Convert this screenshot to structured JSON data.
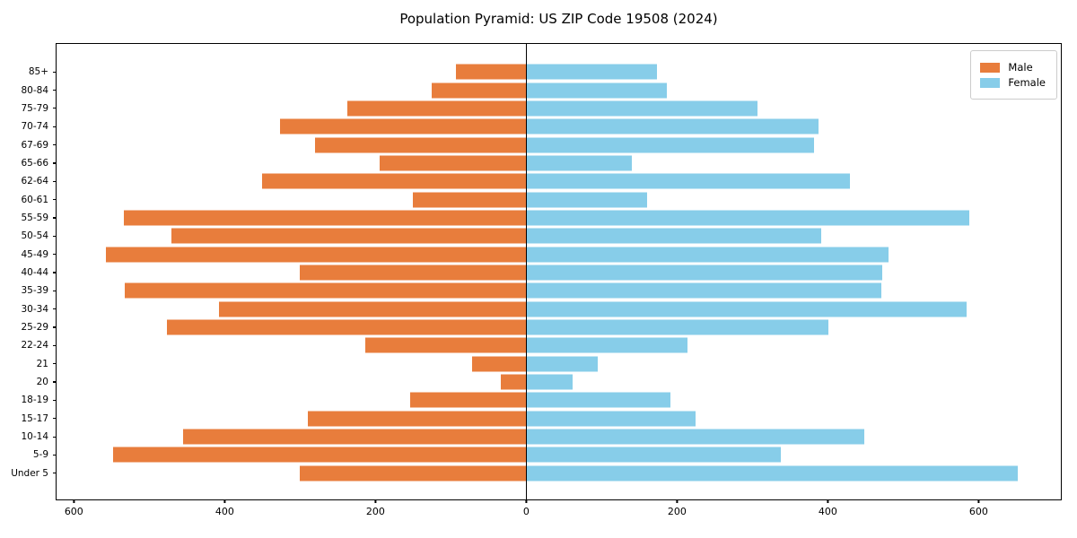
{
  "title": "Population Pyramid: US ZIP Code 19508 (2024)",
  "colors": {
    "male": "#e87d3c",
    "female": "#87cde9",
    "axis": "#000000",
    "zero_line": "#000000",
    "legend_border": "#cccccc"
  },
  "legend": {
    "position": "upper right",
    "entries": [
      {
        "label": "Male",
        "color": "#e87d3c",
        "swatch": "male-swatch"
      },
      {
        "label": "Female",
        "color": "#87cde9",
        "swatch": "female-swatch"
      }
    ]
  },
  "chart_data": {
    "type": "bar",
    "subtype": "population-pyramid",
    "orientation": "horizontal",
    "title": "Population Pyramid: US ZIP Code 19508 (2024)",
    "xlabel": "",
    "ylabel": "",
    "grid": false,
    "legend_position": "upper right",
    "xlim": [
      -623,
      709
    ],
    "x_tick_values": [
      -600,
      -400,
      -200,
      0,
      200,
      400,
      600
    ],
    "x_tick_labels": [
      "600",
      "400",
      "200",
      "0",
      "200",
      "400",
      "600"
    ],
    "categories": [
      "85+",
      "80-84",
      "75-79",
      "70-74",
      "67-69",
      "65-66",
      "62-64",
      "60-61",
      "55-59",
      "50-54",
      "45-49",
      "40-44",
      "35-39",
      "30-34",
      "25-29",
      "22-24",
      "21",
      "20",
      "18-19",
      "15-17",
      "10-14",
      "5-9",
      "Under 5"
    ],
    "series": [
      {
        "name": "Male",
        "side": "left",
        "color": "#e87d3c",
        "values": [
          93,
          125,
          237,
          327,
          280,
          195,
          351,
          151,
          534,
          471,
          558,
          300,
          533,
          407,
          476,
          213,
          72,
          34,
          154,
          290,
          455,
          548,
          301
        ]
      },
      {
        "name": "Female",
        "side": "right",
        "color": "#87cde9",
        "values": [
          173,
          186,
          307,
          388,
          382,
          140,
          429,
          160,
          587,
          391,
          480,
          472,
          471,
          584,
          401,
          214,
          95,
          62,
          191,
          225,
          448,
          338,
          652
        ]
      }
    ]
  }
}
